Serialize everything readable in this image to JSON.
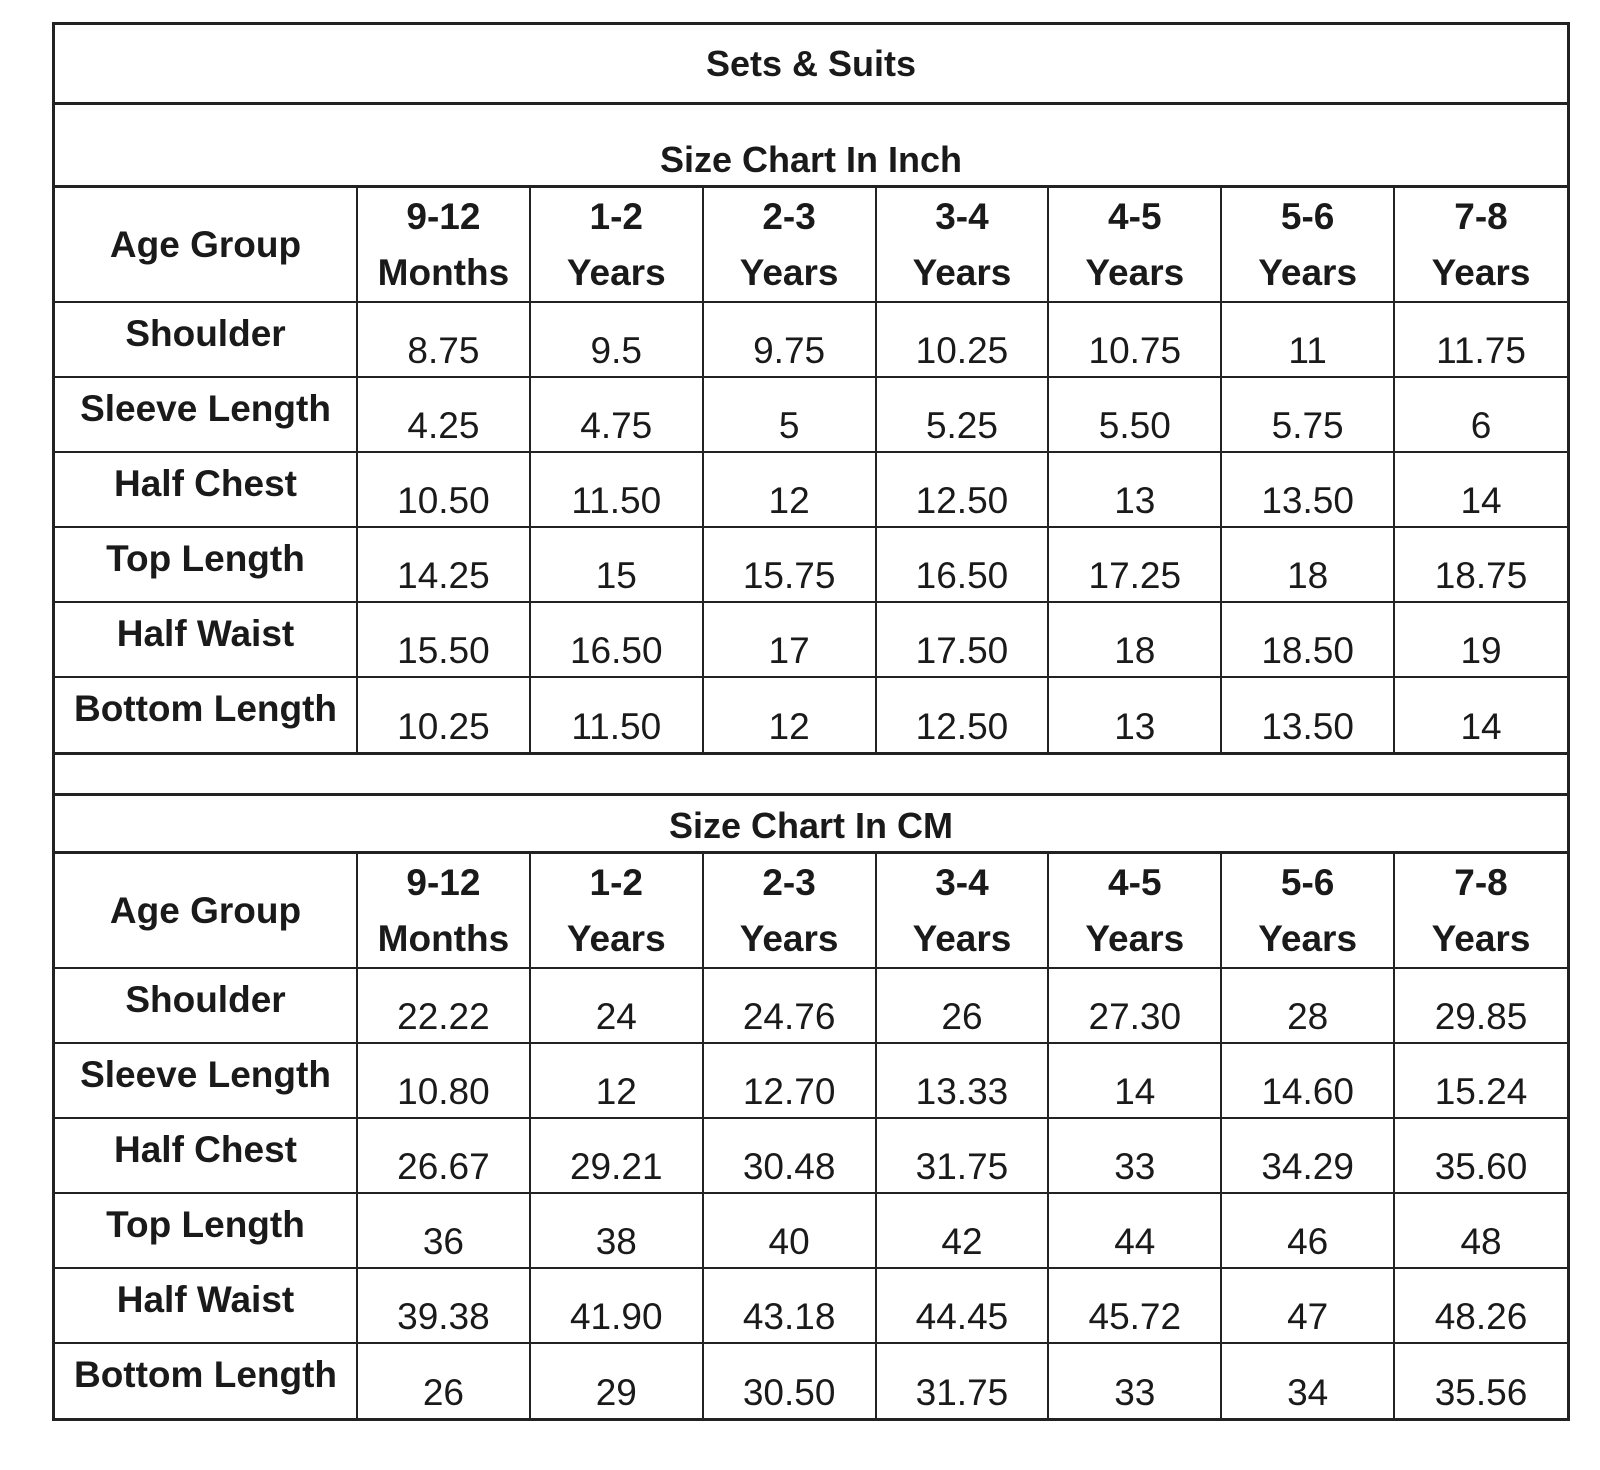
{
  "title": "Sets & Suits",
  "age_group_label": "Age Group",
  "age_groups": [
    {
      "line1": "9-12",
      "line2": "Months"
    },
    {
      "line1": "1-2",
      "line2": "Years"
    },
    {
      "line1": "2-3",
      "line2": "Years"
    },
    {
      "line1": "3-4",
      "line2": "Years"
    },
    {
      "line1": "4-5",
      "line2": "Years"
    },
    {
      "line1": "5-6",
      "line2": "Years"
    },
    {
      "line1": "7-8",
      "line2": "Years"
    }
  ],
  "inch_chart": {
    "title": "Size Chart In Inch",
    "rows": [
      {
        "label": "Shoulder",
        "values": [
          "8.75",
          "9.5",
          "9.75",
          "10.25",
          "10.75",
          "11",
          "11.75"
        ]
      },
      {
        "label": "Sleeve Length",
        "values": [
          "4.25",
          "4.75",
          "5",
          "5.25",
          "5.50",
          "5.75",
          "6"
        ]
      },
      {
        "label": "Half Chest",
        "values": [
          "10.50",
          "11.50",
          "12",
          "12.50",
          "13",
          "13.50",
          "14"
        ]
      },
      {
        "label": "Top Length",
        "values": [
          "14.25",
          "15",
          "15.75",
          "16.50",
          "17.25",
          "18",
          "18.75"
        ]
      },
      {
        "label": "Half Waist",
        "values": [
          "15.50",
          "16.50",
          "17",
          "17.50",
          "18",
          "18.50",
          "19"
        ]
      },
      {
        "label": "Bottom Length",
        "values": [
          "10.25",
          "11.50",
          "12",
          "12.50",
          "13",
          "13.50",
          "14"
        ]
      }
    ]
  },
  "cm_chart": {
    "title": "Size Chart In CM",
    "rows": [
      {
        "label": "Shoulder",
        "values": [
          "22.22",
          "24",
          "24.76",
          "26",
          "27.30",
          "28",
          "29.85"
        ]
      },
      {
        "label": "Sleeve Length",
        "values": [
          "10.80",
          "12",
          "12.70",
          "13.33",
          "14",
          "14.60",
          "15.24"
        ]
      },
      {
        "label": "Half Chest",
        "values": [
          "26.67",
          "29.21",
          "30.48",
          "31.75",
          "33",
          "34.29",
          "35.60"
        ]
      },
      {
        "label": "Top Length",
        "values": [
          "36",
          "38",
          "40",
          "42",
          "44",
          "46",
          "48"
        ]
      },
      {
        "label": "Half Waist",
        "values": [
          "39.38",
          "41.90",
          "43.18",
          "44.45",
          "45.72",
          "47",
          "48.26"
        ]
      },
      {
        "label": "Bottom Length",
        "values": [
          "26",
          "29",
          "30.50",
          "31.75",
          "33",
          "34",
          "35.56"
        ]
      }
    ]
  }
}
